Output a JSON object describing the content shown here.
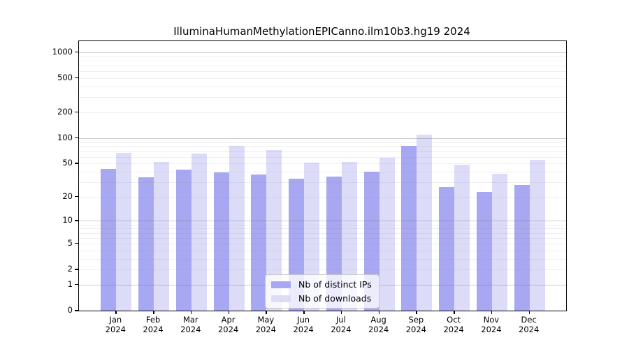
{
  "chart_data": {
    "type": "bar",
    "title": "IlluminaHumanMethylationEPICanno.ilm10b3.hg19 2024",
    "categories": [
      "Jan 2024",
      "Feb 2024",
      "Mar 2024",
      "Apr 2024",
      "May 2024",
      "Jun 2024",
      "Jul 2024",
      "Aug 2024",
      "Sep 2024",
      "Oct 2024",
      "Nov 2024",
      "Dec 2024"
    ],
    "series": [
      {
        "name": "Nb of distinct IPs",
        "color": "#a8a8f2",
        "values": [
          43,
          34,
          42,
          39,
          37,
          33,
          35,
          40,
          80,
          26,
          23,
          28
        ]
      },
      {
        "name": "Nb of downloads",
        "color": "#dcdcf8",
        "values": [
          67,
          52,
          66,
          81,
          72,
          51,
          52,
          58,
          110,
          48,
          38,
          55
        ]
      }
    ],
    "xlabel": "",
    "ylabel": "",
    "y_scale": "log1p",
    "ylim": [
      0,
      1340
    ],
    "y_ticks": [
      0,
      1,
      2,
      5,
      10,
      20,
      50,
      100,
      200,
      500,
      1000
    ],
    "y_minor_ticks": [
      3,
      4,
      6,
      7,
      8,
      9,
      30,
      40,
      60,
      70,
      80,
      90,
      300,
      400,
      600,
      700,
      800,
      900
    ],
    "grid": true,
    "legend_position": "lower center"
  },
  "colors": {
    "distinct_ips_bar": "#a8a8f2",
    "downloads_bar": "#dcdcf8",
    "spine": "#000000",
    "major_gridline": "#c9c9c9",
    "minor_gridline": "#e9e9e9",
    "legend_border": "#c9c9c9"
  }
}
